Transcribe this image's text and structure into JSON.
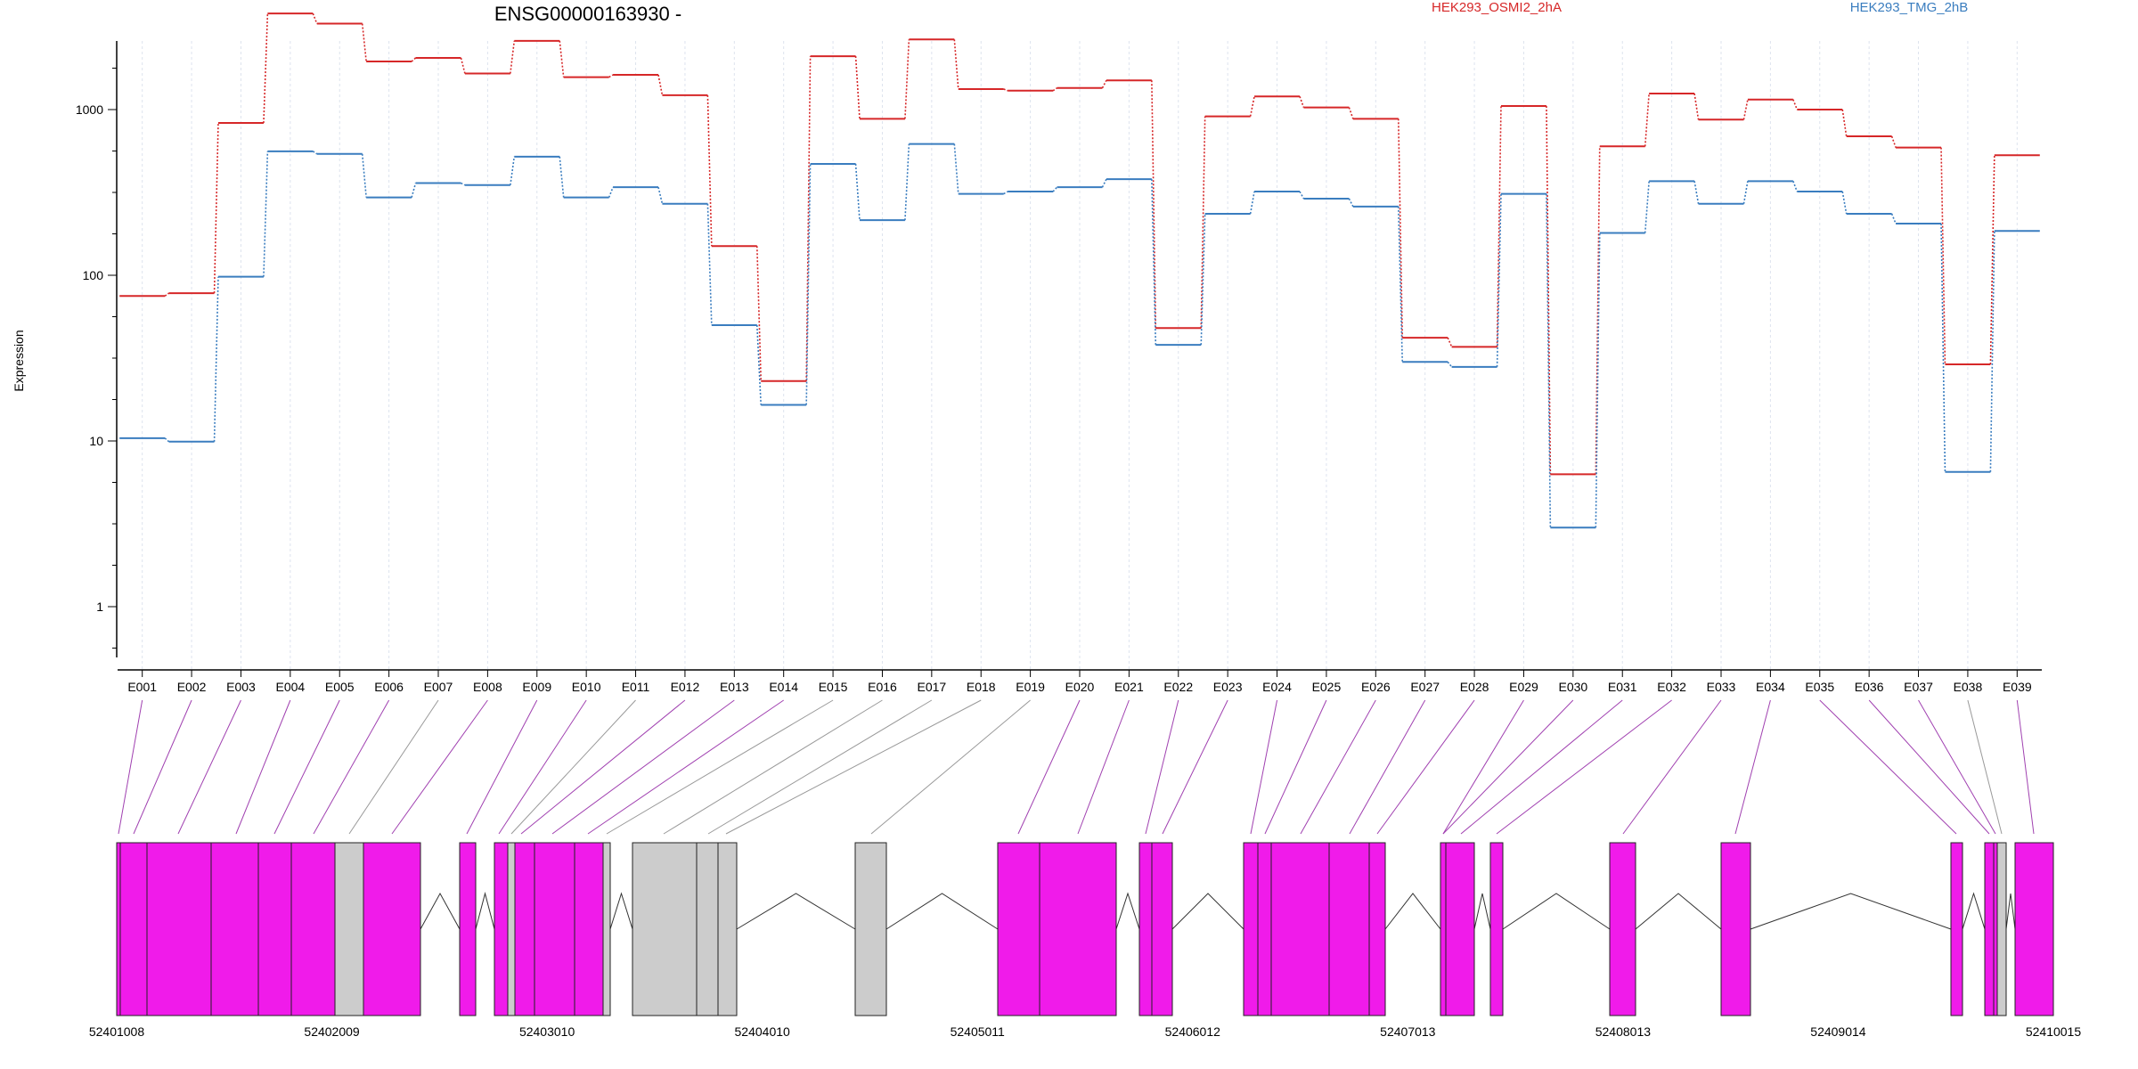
{
  "chart_data": {
    "type": "line",
    "title": "ENSG00000163930 -",
    "xlabel": "",
    "ylabel": "Expression",
    "y_scale": "log",
    "ylim": [
      0.35,
      5500
    ],
    "y_ticks": [
      1,
      10,
      100,
      1000
    ],
    "y_tick_labels": [
      "1",
      "10",
      "100",
      "1000"
    ],
    "grid": "vertical dashed lines at each exon",
    "legend_placement": "top",
    "categories": [
      "E001",
      "E002",
      "E003",
      "E004",
      "E005",
      "E006",
      "E007",
      "E008",
      "E009",
      "E010",
      "E011",
      "E012",
      "E013",
      "E014",
      "E015",
      "E016",
      "E017",
      "E018",
      "E019",
      "E020",
      "E021",
      "E022",
      "E023",
      "E024",
      "E025",
      "E026",
      "E027",
      "E028",
      "E029",
      "E030",
      "E031",
      "E032",
      "E033",
      "E034",
      "E035",
      "E036",
      "E037",
      "E038",
      "E039"
    ],
    "series": [
      {
        "name": "HEK293_OSMI2_2hA",
        "color": "#d62728",
        "values": [
          75,
          78,
          830,
          3800,
          3300,
          1950,
          2050,
          1650,
          2600,
          1570,
          1620,
          1220,
          150,
          23,
          2100,
          880,
          2650,
          1330,
          1300,
          1350,
          1500,
          48,
          910,
          1200,
          1030,
          880,
          42,
          37,
          1050,
          6.3,
          600,
          1250,
          870,
          1150,
          1000,
          690,
          590,
          29,
          530
        ]
      },
      {
        "name": "HEK293_TMG_2hB",
        "color": "#3a7dbf",
        "values": [
          10.4,
          9.9,
          98,
          560,
          540,
          295,
          360,
          350,
          520,
          295,
          340,
          270,
          50,
          16.5,
          470,
          215,
          620,
          310,
          320,
          340,
          380,
          38,
          235,
          320,
          290,
          260,
          30,
          28,
          310,
          3.0,
          180,
          370,
          270,
          370,
          320,
          235,
          205,
          6.5,
          185
        ]
      }
    ],
    "gene_model": {
      "coordinate_labels": [
        "52401008",
        "52402009",
        "52403010",
        "52404010",
        "52405011",
        "52406012",
        "52407013",
        "52408013",
        "52409014",
        "52410015"
      ],
      "exons": [
        {
          "id": "E001",
          "type": "coding"
        },
        {
          "id": "E002",
          "type": "coding"
        },
        {
          "id": "E003",
          "type": "coding"
        },
        {
          "id": "E004",
          "type": "coding"
        },
        {
          "id": "E005",
          "type": "coding"
        },
        {
          "id": "E006",
          "type": "coding"
        },
        {
          "id": "E007",
          "type": "noncoding"
        },
        {
          "id": "E008",
          "type": "coding"
        },
        {
          "id": "E009",
          "type": "coding"
        },
        {
          "id": "E010",
          "type": "coding"
        },
        {
          "id": "E011",
          "type": "noncoding"
        },
        {
          "id": "E012",
          "type": "coding"
        },
        {
          "id": "E013",
          "type": "coding"
        },
        {
          "id": "E014",
          "type": "coding"
        },
        {
          "id": "E015",
          "type": "noncoding"
        },
        {
          "id": "E016",
          "type": "noncoding"
        },
        {
          "id": "E017",
          "type": "noncoding"
        },
        {
          "id": "E018",
          "type": "noncoding"
        },
        {
          "id": "E019",
          "type": "noncoding"
        },
        {
          "id": "E020",
          "type": "coding"
        },
        {
          "id": "E021",
          "type": "coding"
        },
        {
          "id": "E022",
          "type": "coding"
        },
        {
          "id": "E023",
          "type": "coding"
        },
        {
          "id": "E024",
          "type": "coding"
        },
        {
          "id": "E025",
          "type": "coding"
        },
        {
          "id": "E026",
          "type": "coding"
        },
        {
          "id": "E027",
          "type": "coding"
        },
        {
          "id": "E028",
          "type": "coding"
        },
        {
          "id": "E029",
          "type": "coding"
        },
        {
          "id": "E030",
          "type": "coding"
        },
        {
          "id": "E031",
          "type": "coding"
        },
        {
          "id": "E032",
          "type": "coding"
        },
        {
          "id": "E033",
          "type": "coding"
        },
        {
          "id": "E034",
          "type": "coding"
        },
        {
          "id": "E035",
          "type": "coding"
        },
        {
          "id": "E036",
          "type": "coding"
        },
        {
          "id": "E037",
          "type": "coding"
        },
        {
          "id": "E038",
          "type": "noncoding"
        },
        {
          "id": "E039",
          "type": "coding"
        }
      ]
    }
  },
  "colors": {
    "coding_exon": "#f01bea",
    "noncoding_exon": "#cccccc",
    "coding_link": "#a040b0",
    "noncoding_link": "#999999",
    "grid": "#dde3ee",
    "axis": "#000000"
  }
}
